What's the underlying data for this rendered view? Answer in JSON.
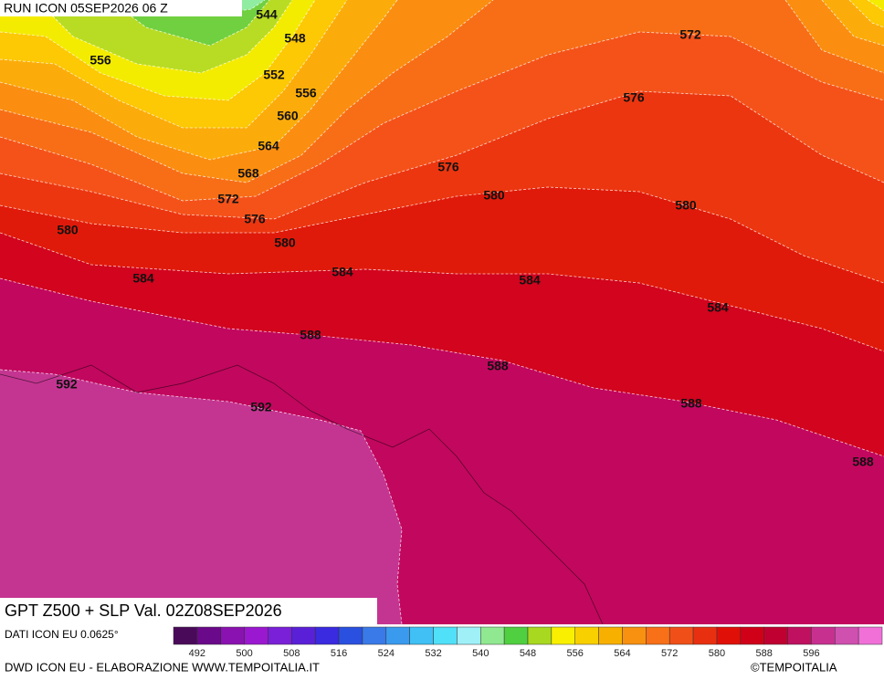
{
  "run_label": "RUN ICON 05SEP2026 06 Z",
  "map_title": "GPT Z500 + SLP Val. 02Z08SEP2026",
  "data_source": "DATI ICON EU 0.0625°",
  "credit": "DWD ICON EU - ELABORAZIONE WWW.TEMPOITALIA.IT",
  "copyright": "©TEMPOITALIA",
  "contour_labels": [
    544,
    548,
    552,
    556,
    560,
    564,
    568,
    572,
    576,
    580,
    580,
    584,
    584,
    588,
    592,
    592,
    588,
    584,
    580,
    576,
    576,
    572,
    580,
    584,
    588,
    588,
    556
  ],
  "legend": {
    "labels": [
      492,
      500,
      508,
      516,
      524,
      532,
      540,
      548,
      556,
      564,
      572,
      580,
      588,
      596
    ],
    "colors": [
      "#4a0a5a",
      "#6a0a8a",
      "#8a12b0",
      "#9a18d0",
      "#7a20d8",
      "#5a20d8",
      "#3a2ae0",
      "#2a50e0",
      "#3a7ae8",
      "#3a9aee",
      "#40c0f4",
      "#50e0f8",
      "#a0f0f8",
      "#90e890",
      "#50d040",
      "#a8d820",
      "#f8f000",
      "#f8d000",
      "#f8b000",
      "#f89010",
      "#f87018",
      "#f05018",
      "#e83010",
      "#e01008",
      "#d00018",
      "#c00030",
      "#c01060",
      "#c83090",
      "#d050b0",
      "#f070d8"
    ]
  }
}
